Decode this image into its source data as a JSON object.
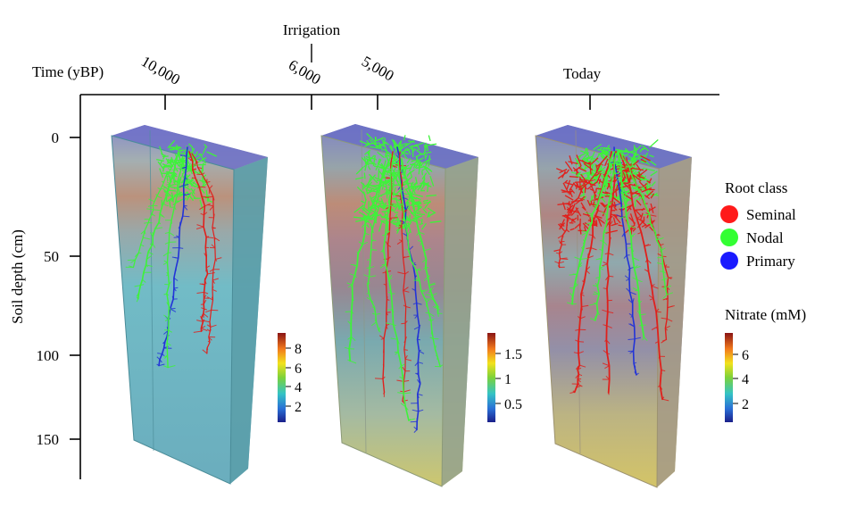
{
  "time_axis": {
    "label": "Time (yBP)",
    "event_label": "Irrigation",
    "ticks": [
      "10,000",
      "6,000",
      "5,000",
      "Today"
    ]
  },
  "depth_axis": {
    "label": "Soil depth (cm)",
    "ticks": [
      "0",
      "50",
      "100",
      "150"
    ]
  },
  "colorbars": [
    {
      "ticks": [
        "8",
        "6",
        "4",
        "2"
      ]
    },
    {
      "ticks": [
        "1.5",
        "1",
        "0.5"
      ]
    },
    {
      "title": "Nitrate (mM)",
      "ticks": [
        "6",
        "4",
        "2"
      ]
    }
  ],
  "legend": {
    "title": "Root class",
    "items": [
      {
        "label": "Seminal",
        "color": "#ff1a1a"
      },
      {
        "label": "Nodal",
        "color": "#33ff33"
      },
      {
        "label": "Primary",
        "color": "#1a1aff"
      }
    ]
  },
  "colors": {
    "seminal": "#e0201c",
    "nodal": "#3ef23a",
    "primary": "#2233d8",
    "box_top": "#6a6ad0",
    "box_body": "#5fa8b8",
    "box_body_yellow": "#c2c05a"
  }
}
